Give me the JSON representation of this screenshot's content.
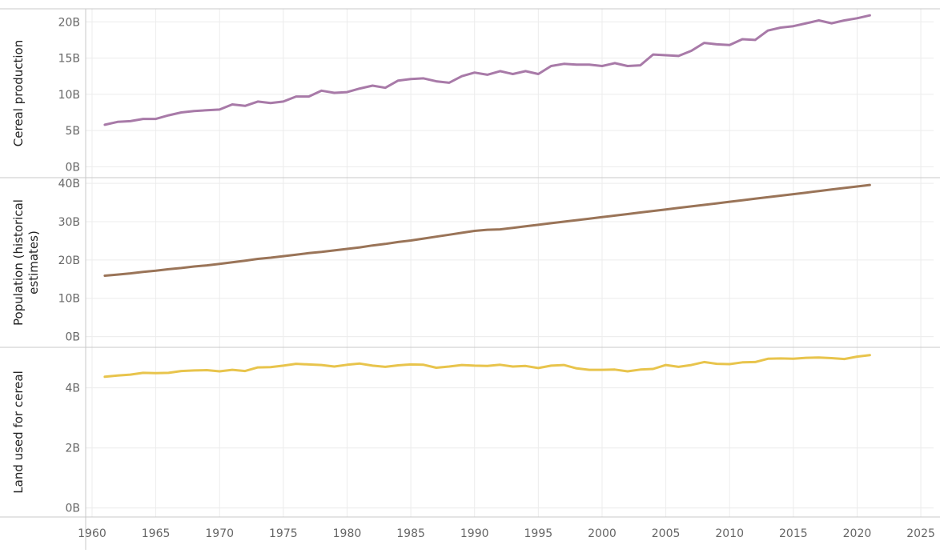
{
  "chart_data": {
    "type": "line",
    "x_ticks": [
      1960,
      1965,
      1970,
      1975,
      1980,
      1985,
      1990,
      1995,
      2000,
      2005,
      2010,
      2015,
      2020,
      2025
    ],
    "xlim": [
      1959.5,
      2026
    ],
    "x": [
      1961,
      1962,
      1963,
      1964,
      1965,
      1966,
      1967,
      1968,
      1969,
      1970,
      1971,
      1972,
      1973,
      1974,
      1975,
      1976,
      1977,
      1978,
      1979,
      1980,
      1981,
      1982,
      1983,
      1984,
      1985,
      1986,
      1987,
      1988,
      1989,
      1990,
      1991,
      1992,
      1993,
      1994,
      1995,
      1996,
      1997,
      1998,
      1999,
      2000,
      2001,
      2002,
      2003,
      2004,
      2005,
      2006,
      2007,
      2008,
      2009,
      2010,
      2011,
      2012,
      2013,
      2014,
      2015,
      2016,
      2017,
      2018,
      2019,
      2020,
      2021
    ],
    "panels": [
      {
        "name": "cereal-production",
        "ylabel": [
          "Cereal production"
        ],
        "ylim": [
          -1.5,
          21.8
        ],
        "y_ticks": [
          0,
          5,
          10,
          15,
          20
        ],
        "y_tick_labels": [
          "0B",
          "5B",
          "10B",
          "15B",
          "20B"
        ],
        "color": "#a87aa8",
        "values": [
          5.8,
          6.2,
          6.3,
          6.6,
          6.6,
          7.1,
          7.5,
          7.7,
          7.8,
          7.9,
          8.6,
          8.4,
          9.0,
          8.8,
          9.0,
          9.7,
          9.7,
          10.5,
          10.2,
          10.3,
          10.8,
          11.2,
          10.9,
          11.9,
          12.1,
          12.2,
          11.8,
          11.6,
          12.5,
          13.0,
          12.7,
          13.2,
          12.8,
          13.2,
          12.8,
          13.9,
          14.2,
          14.1,
          14.1,
          13.9,
          14.3,
          13.9,
          14.0,
          15.5,
          15.4,
          15.3,
          16.0,
          17.1,
          16.9,
          16.8,
          17.6,
          17.5,
          18.8,
          19.2,
          19.4,
          19.8,
          20.2,
          19.8,
          20.2,
          20.5,
          20.9
        ]
      },
      {
        "name": "population",
        "ylabel": [
          "Population (historical",
          "estimates)"
        ],
        "ylim": [
          -2.8,
          41.5
        ],
        "y_ticks": [
          0,
          10,
          20,
          30,
          40
        ],
        "y_tick_labels": [
          "0B",
          "10B",
          "20B",
          "30B",
          "40B"
        ],
        "color": "#9a7458",
        "values": [
          15.9,
          16.2,
          16.5,
          16.9,
          17.2,
          17.6,
          17.9,
          18.3,
          18.6,
          19.0,
          19.4,
          19.8,
          20.3,
          20.6,
          21.0,
          21.4,
          21.8,
          22.1,
          22.5,
          22.9,
          23.3,
          23.8,
          24.2,
          24.7,
          25.1,
          25.6,
          26.1,
          26.6,
          27.1,
          27.6,
          27.9,
          28.0,
          28.4,
          28.8,
          29.2,
          29.6,
          30.0,
          30.4,
          30.8,
          31.2,
          31.6,
          32.0,
          32.4,
          32.8,
          33.2,
          33.6,
          34.0,
          34.4,
          34.8,
          35.2,
          35.6,
          36.0,
          36.4,
          36.8,
          37.2,
          37.6,
          38.0,
          38.4,
          38.8,
          39.2,
          39.6
        ]
      },
      {
        "name": "land-used-for-cereal",
        "ylabel": [
          "Land used for cereal"
        ],
        "ylim": [
          -0.3,
          5.35
        ],
        "y_ticks": [
          0,
          2,
          4
        ],
        "y_tick_labels": [
          "0B",
          "2B",
          "4B"
        ],
        "color": "#e8c44c",
        "values": [
          4.37,
          4.41,
          4.44,
          4.5,
          4.49,
          4.5,
          4.56,
          4.58,
          4.59,
          4.55,
          4.6,
          4.56,
          4.68,
          4.69,
          4.74,
          4.8,
          4.78,
          4.76,
          4.71,
          4.77,
          4.81,
          4.74,
          4.7,
          4.75,
          4.78,
          4.77,
          4.67,
          4.71,
          4.76,
          4.74,
          4.73,
          4.77,
          4.71,
          4.73,
          4.66,
          4.74,
          4.76,
          4.65,
          4.6,
          4.6,
          4.61,
          4.55,
          4.61,
          4.63,
          4.76,
          4.7,
          4.76,
          4.86,
          4.8,
          4.79,
          4.85,
          4.86,
          4.97,
          4.98,
          4.97,
          5.0,
          5.01,
          4.99,
          4.96,
          5.04,
          5.09
        ]
      }
    ]
  }
}
